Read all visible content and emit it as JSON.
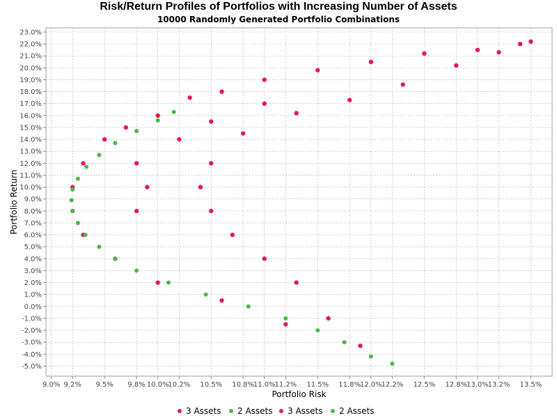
{
  "chart_data": {
    "type": "scatter",
    "title": "Risk/Return Profiles of Portfolios with Increasing Number of Assets",
    "subtitle": "10000 Randomly Generated Portfolio Combinations",
    "xlabel": "Portfolio Risk",
    "ylabel": "Portfolio Return",
    "xlim": [
      8.95,
      13.7
    ],
    "ylim": [
      -5.85,
      23.35
    ],
    "x_ticks": [
      9.0,
      9.2,
      9.5,
      9.8,
      10.0,
      10.2,
      10.5,
      10.8,
      11.0,
      11.2,
      11.5,
      11.8,
      12.0,
      12.2,
      12.5,
      12.8,
      13.0,
      13.2,
      13.5
    ],
    "x_tick_labels": [
      "9.0%",
      "9.2%",
      "9.5%",
      "9.8%",
      "10.0%",
      "10.2%",
      "10.5%",
      "10.8%",
      "11.0%",
      "11.2%",
      "11.5%",
      "11.8%",
      "12.0%",
      "12.2%",
      "12.5%",
      "12.8%",
      "13.0%",
      "13.2%",
      "13.5%"
    ],
    "y_ticks": [
      -5,
      -4,
      -3,
      -2,
      -1,
      0,
      1,
      2,
      3,
      4,
      5,
      6,
      7,
      8,
      9,
      10,
      11,
      12,
      13,
      14,
      15,
      16,
      17,
      18,
      19,
      20,
      21,
      22,
      23
    ],
    "y_tick_labels": [
      "-5.0%",
      "-4.0%",
      "-3.0%",
      "-2.0%",
      "-1.0%",
      "0.0%",
      "1.0%",
      "2.0%",
      "3.0%",
      "4.0%",
      "5.0%",
      "6.0%",
      "7.0%",
      "8.0%",
      "9.0%",
      "10.0%",
      "11.0%",
      "12.0%",
      "13.0%",
      "14.0%",
      "15.0%",
      "16.0%",
      "17.0%",
      "18.0%",
      "19.0%",
      "20.0%",
      "21.0%",
      "22.0%",
      "23.0%"
    ],
    "grid": true,
    "legend_position": "bottom",
    "series": [
      {
        "name": "3 Assets",
        "color": "#e8184f",
        "note_shape": "dense cloud of 10000 points",
        "points": [
          [
            10.0,
            16.0
          ],
          [
            10.3,
            17.5
          ],
          [
            10.6,
            18.0
          ],
          [
            11.0,
            19.0
          ],
          [
            11.5,
            19.8
          ],
          [
            12.0,
            20.5
          ],
          [
            12.5,
            21.2
          ],
          [
            13.0,
            21.5
          ],
          [
            13.5,
            22.2
          ],
          [
            13.4,
            22.0
          ],
          [
            13.2,
            21.3
          ],
          [
            12.8,
            20.2
          ],
          [
            12.3,
            18.6
          ],
          [
            11.8,
            17.3
          ],
          [
            11.3,
            16.2
          ],
          [
            10.8,
            14.5
          ],
          [
            10.5,
            12.0
          ],
          [
            10.4,
            10.0
          ],
          [
            10.5,
            8.0
          ],
          [
            10.7,
            6.0
          ],
          [
            11.0,
            4.0
          ],
          [
            11.3,
            2.0
          ],
          [
            11.6,
            -1.0
          ],
          [
            11.9,
            -3.3
          ],
          [
            11.2,
            -1.5
          ],
          [
            10.6,
            0.5
          ],
          [
            10.0,
            2.0
          ],
          [
            9.6,
            4.0
          ],
          [
            9.3,
            6.0
          ],
          [
            9.2,
            8.0
          ],
          [
            9.2,
            10.0
          ],
          [
            9.3,
            12.0
          ],
          [
            9.5,
            14.0
          ],
          [
            9.7,
            15.0
          ],
          [
            9.8,
            12.0
          ],
          [
            9.9,
            10.0
          ],
          [
            9.8,
            8.0
          ],
          [
            10.2,
            14.0
          ],
          [
            10.5,
            15.5
          ],
          [
            11.0,
            17.0
          ]
        ]
      },
      {
        "name": "2 Assets",
        "color": "#44bb44",
        "points": [
          [
            10.15,
            16.3
          ],
          [
            10.0,
            15.6
          ],
          [
            9.8,
            14.7
          ],
          [
            9.6,
            13.7
          ],
          [
            9.45,
            12.7
          ],
          [
            9.33,
            11.7
          ],
          [
            9.25,
            10.7
          ],
          [
            9.2,
            9.8
          ],
          [
            9.19,
            8.9
          ],
          [
            9.2,
            8.0
          ],
          [
            9.25,
            7.0
          ],
          [
            9.32,
            6.0
          ],
          [
            9.45,
            5.0
          ],
          [
            9.6,
            4.0
          ],
          [
            9.8,
            3.0
          ],
          [
            10.1,
            2.0
          ],
          [
            10.45,
            1.0
          ],
          [
            10.85,
            0.0
          ],
          [
            11.2,
            -1.0
          ],
          [
            11.5,
            -2.0
          ],
          [
            11.75,
            -3.0
          ],
          [
            12.0,
            -4.2
          ],
          [
            12.2,
            -4.8
          ]
        ]
      }
    ],
    "legend": [
      {
        "name": "3 Assets",
        "color": "#e8184f"
      },
      {
        "name": "2 Assets",
        "color": "#44bb44"
      },
      {
        "name": "3 Assets",
        "color": "#e8184f"
      },
      {
        "name": "2 Assets",
        "color": "#44bb44"
      }
    ]
  }
}
